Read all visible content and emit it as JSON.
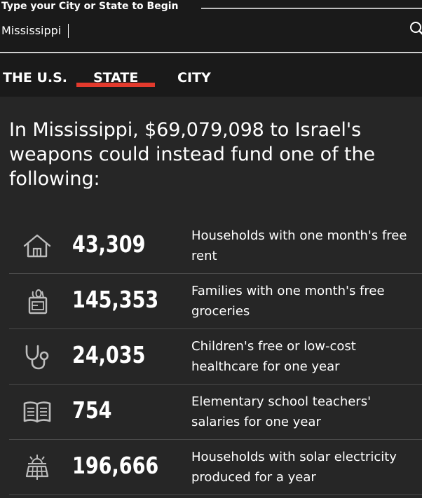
{
  "search": {
    "label": "Type your City or State to Begin",
    "value": "Mississippi"
  },
  "tabs": [
    {
      "label": "THE U.S.",
      "active": false
    },
    {
      "label": "STATE",
      "active": true
    },
    {
      "label": "CITY",
      "active": false
    }
  ],
  "headline": "In Mississippi, $69,079,098 to Israel's weapons could instead fund one of the following:",
  "items": [
    {
      "icon": "house-icon",
      "number": "43,309",
      "description": "Households with one month's free rent"
    },
    {
      "icon": "grocery-bag-icon",
      "number": "145,353",
      "description": "Families with one month's free groceries"
    },
    {
      "icon": "stethoscope-icon",
      "number": "24,035",
      "description": "Children's free or low-cost healthcare for one year"
    },
    {
      "icon": "open-book-icon",
      "number": "754",
      "description": "Elementary school teachers' salaries for one year"
    },
    {
      "icon": "solar-panel-icon",
      "number": "196,666",
      "description": "Households with solar electricity produced for a year"
    }
  ],
  "colors": {
    "accent": "#e33a2d",
    "background": "#1a1a1a",
    "panel": "#262626",
    "icon": "#bdbdbd"
  }
}
